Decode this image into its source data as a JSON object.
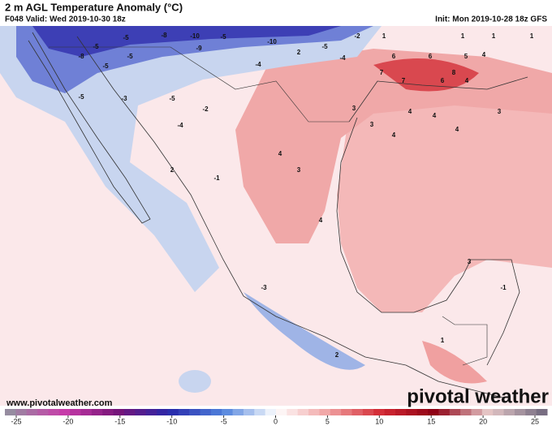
{
  "header": {
    "title": "2 m AGL Temperature Anomaly (°C)",
    "valid": "F048 Valid: Wed 2019-10-30 18z",
    "init": "Init: Mon 2019-10-28 18z GFS"
  },
  "footer": {
    "website": "www.pivotalweather.com",
    "logo": "pivotal weather"
  },
  "map_labels": [
    -5,
    -8,
    -10,
    -10,
    -9,
    -5,
    -2,
    1,
    1,
    1,
    1,
    -5,
    -8,
    -5,
    -5,
    -4,
    2,
    -5,
    -4,
    6,
    6,
    5,
    4,
    7,
    7,
    6,
    8,
    4,
    -5,
    -3,
    -5,
    -2,
    -4,
    3,
    4,
    4,
    3,
    3,
    4,
    4,
    4,
    3,
    -1,
    2,
    4,
    3,
    -1,
    -3,
    2,
    1
  ],
  "colorbar": {
    "range": [
      -25,
      25
    ],
    "ticks": [
      -25,
      -20,
      -15,
      -10,
      -5,
      0,
      5,
      10,
      15,
      20,
      25
    ]
  }
}
